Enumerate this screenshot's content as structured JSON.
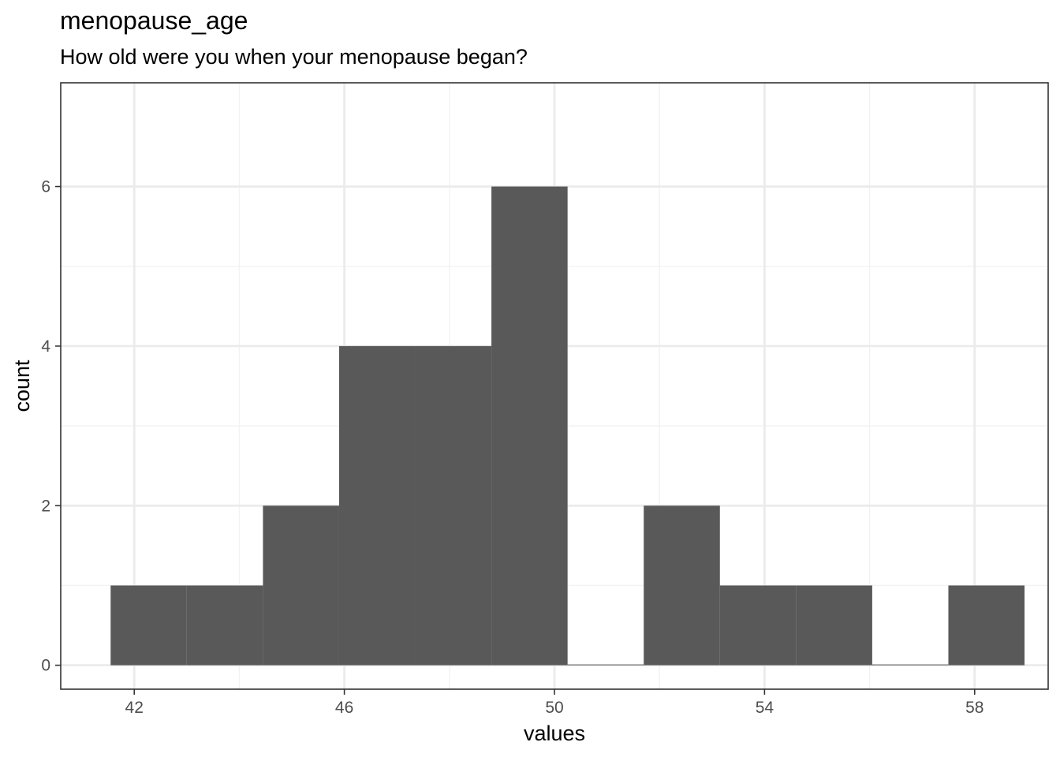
{
  "chart_data": {
    "type": "bar",
    "title": "menopause_age",
    "subtitle": "How old were you when your menopause began?",
    "xlabel": "values",
    "ylabel": "count",
    "xlim": [
      40.6,
      59.4
    ],
    "ylim": [
      -0.3,
      7.3
    ],
    "x_ticks": [
      42,
      46,
      50,
      54,
      58
    ],
    "y_ticks": [
      0,
      2,
      4,
      6
    ],
    "grid": true,
    "bars": [
      {
        "x0": 41.55,
        "x1": 43.0,
        "count": 1
      },
      {
        "x0": 43.0,
        "x1": 44.45,
        "count": 1
      },
      {
        "x0": 44.45,
        "x1": 45.9,
        "count": 2
      },
      {
        "x0": 45.9,
        "x1": 47.35,
        "count": 4
      },
      {
        "x0": 47.35,
        "x1": 48.8,
        "count": 4
      },
      {
        "x0": 48.8,
        "x1": 50.25,
        "count": 6
      },
      {
        "x0": 50.25,
        "x1": 51.7,
        "count": 0
      },
      {
        "x0": 51.7,
        "x1": 53.15,
        "count": 2
      },
      {
        "x0": 53.15,
        "x1": 54.6,
        "count": 1
      },
      {
        "x0": 54.6,
        "x1": 56.05,
        "count": 1
      },
      {
        "x0": 56.05,
        "x1": 57.5,
        "count": 0
      },
      {
        "x0": 57.5,
        "x1": 58.95,
        "count": 1
      }
    ],
    "colors": {
      "bar": "#595959",
      "grid_major": "#ebebeb",
      "grid_minor": "#f2f2f2",
      "panel_border": "#333333"
    }
  }
}
